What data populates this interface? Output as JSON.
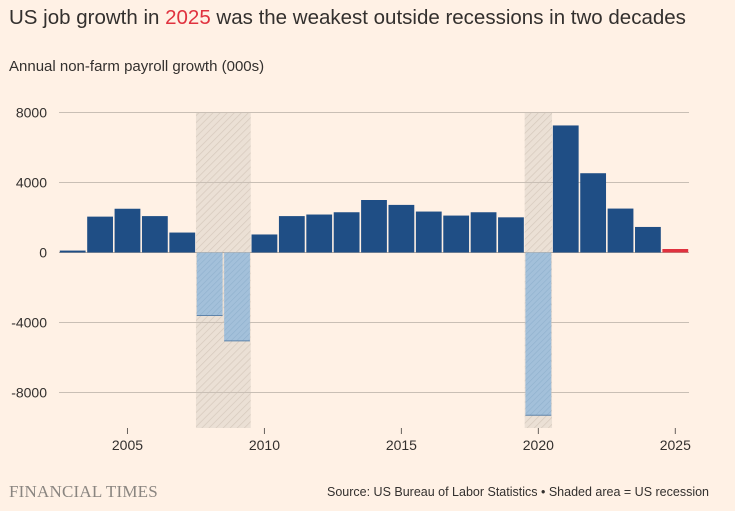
{
  "header": {
    "title_before": "US job growth in ",
    "title_highlight": "2025",
    "title_after": " was the weakest outside recessions in two decades",
    "subtitle": "Annual non-farm payroll growth (000s)"
  },
  "footer": {
    "brand": "FINANCIAL TIMES",
    "source": "Source: US Bureau of Labor Statistics • Shaded area = US recession"
  },
  "colors": {
    "background": "#fff1e5",
    "growth": "#1f4e85",
    "recession_decline": "#9dbbd6",
    "current_year": "#e0323f",
    "recession_shade": "#e8ddd2",
    "grid": "#c9bfb5"
  },
  "chart_data": {
    "type": "bar",
    "title": "US job growth in 2025 was the weakest outside recessions in two decades",
    "ylabel": "Annual non-farm payroll growth (000s)",
    "xlabel": "",
    "ylim": [
      -10000,
      8000
    ],
    "yticks": [
      8000,
      4000,
      0,
      -4000,
      -8000
    ],
    "yticklabels": [
      "8000",
      "4000",
      "0",
      "-4000",
      "-8000"
    ],
    "xticks": [
      2005,
      2010,
      2015,
      2020,
      2025
    ],
    "xlim": [
      2002.5,
      2025.5
    ],
    "grid": true,
    "years": [
      2003,
      2004,
      2005,
      2006,
      2007,
      2008,
      2009,
      2010,
      2011,
      2012,
      2013,
      2014,
      2015,
      2016,
      2017,
      2018,
      2019,
      2020,
      2021,
      2022,
      2023,
      2024,
      2025
    ],
    "values": [
      110,
      2050,
      2500,
      2080,
      1140,
      -3600,
      -5050,
      1030,
      2080,
      2170,
      2300,
      3000,
      2720,
      2340,
      2110,
      2300,
      2010,
      -9300,
      7260,
      4530,
      2510,
      1460,
      180
    ],
    "recessions": [
      [
        2007.5,
        2009.5
      ],
      [
        2019.5,
        2020.5
      ]
    ],
    "recession_years": [
      2008,
      2009,
      2020
    ],
    "highlight_year": 2025
  }
}
